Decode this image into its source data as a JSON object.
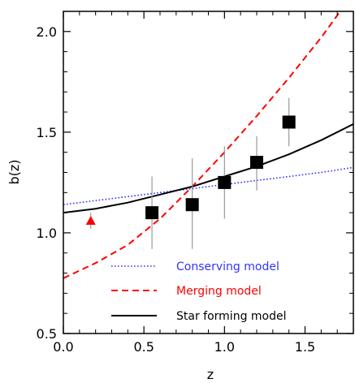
{
  "chart_data": {
    "type": "scatter",
    "xlabel": "z",
    "ylabel": "b(z)",
    "xlim": [
      0.0,
      1.8
    ],
    "ylim": [
      0.5,
      2.1
    ],
    "x_ticks": [
      0.0,
      0.5,
      1.0,
      1.5
    ],
    "x_tick_labels": [
      "0.0",
      "0.5",
      "1.0",
      "1.5"
    ],
    "y_ticks": [
      0.5,
      1.0,
      1.5,
      2.0
    ],
    "y_tick_labels": [
      "0.5",
      "1.0",
      "1.5",
      "2.0"
    ],
    "grid": false,
    "legend_position": "bottom-right",
    "measurements": {
      "marker": "square",
      "color": "#000000",
      "points": [
        {
          "x": 0.55,
          "y": 1.1,
          "y_low": 0.92,
          "y_high": 1.28
        },
        {
          "x": 0.8,
          "y": 1.14,
          "y_low": 0.92,
          "y_high": 1.37
        },
        {
          "x": 1.0,
          "y": 1.25,
          "y_low": 1.07,
          "y_high": 1.43
        },
        {
          "x": 1.2,
          "y": 1.35,
          "y_low": 1.21,
          "y_high": 1.48
        },
        {
          "x": 1.4,
          "y": 1.55,
          "y_low": 1.43,
          "y_high": 1.67
        }
      ]
    },
    "reference_point": {
      "marker": "triangle",
      "color": "#ff0000",
      "x": 0.17,
      "y": 1.06,
      "y_low": 1.02,
      "y_high": 1.1
    },
    "series": [
      {
        "name": "Conserving model",
        "color": "#3333ff",
        "dash": "dotted",
        "x": [
          0.0,
          0.2,
          0.4,
          0.6,
          0.8,
          1.0,
          1.2,
          1.4,
          1.6,
          1.8
        ],
        "y": [
          1.14,
          1.16,
          1.18,
          1.2,
          1.22,
          1.24,
          1.26,
          1.28,
          1.3,
          1.325
        ]
      },
      {
        "name": "Merging model",
        "color": "#ff0000",
        "dash": "dashed",
        "x": [
          0.0,
          0.2,
          0.4,
          0.6,
          0.8,
          1.0,
          1.2,
          1.4,
          1.6,
          1.7,
          1.8
        ],
        "y": [
          0.775,
          0.85,
          0.94,
          1.07,
          1.23,
          1.4,
          1.58,
          1.77,
          1.97,
          2.08,
          2.2
        ]
      },
      {
        "name": "Star forming model",
        "color": "#000000",
        "dash": "solid",
        "x": [
          0.0,
          0.2,
          0.4,
          0.6,
          0.8,
          1.0,
          1.2,
          1.4,
          1.6,
          1.8
        ],
        "y": [
          1.1,
          1.12,
          1.15,
          1.19,
          1.23,
          1.28,
          1.33,
          1.39,
          1.46,
          1.54
        ]
      }
    ]
  }
}
